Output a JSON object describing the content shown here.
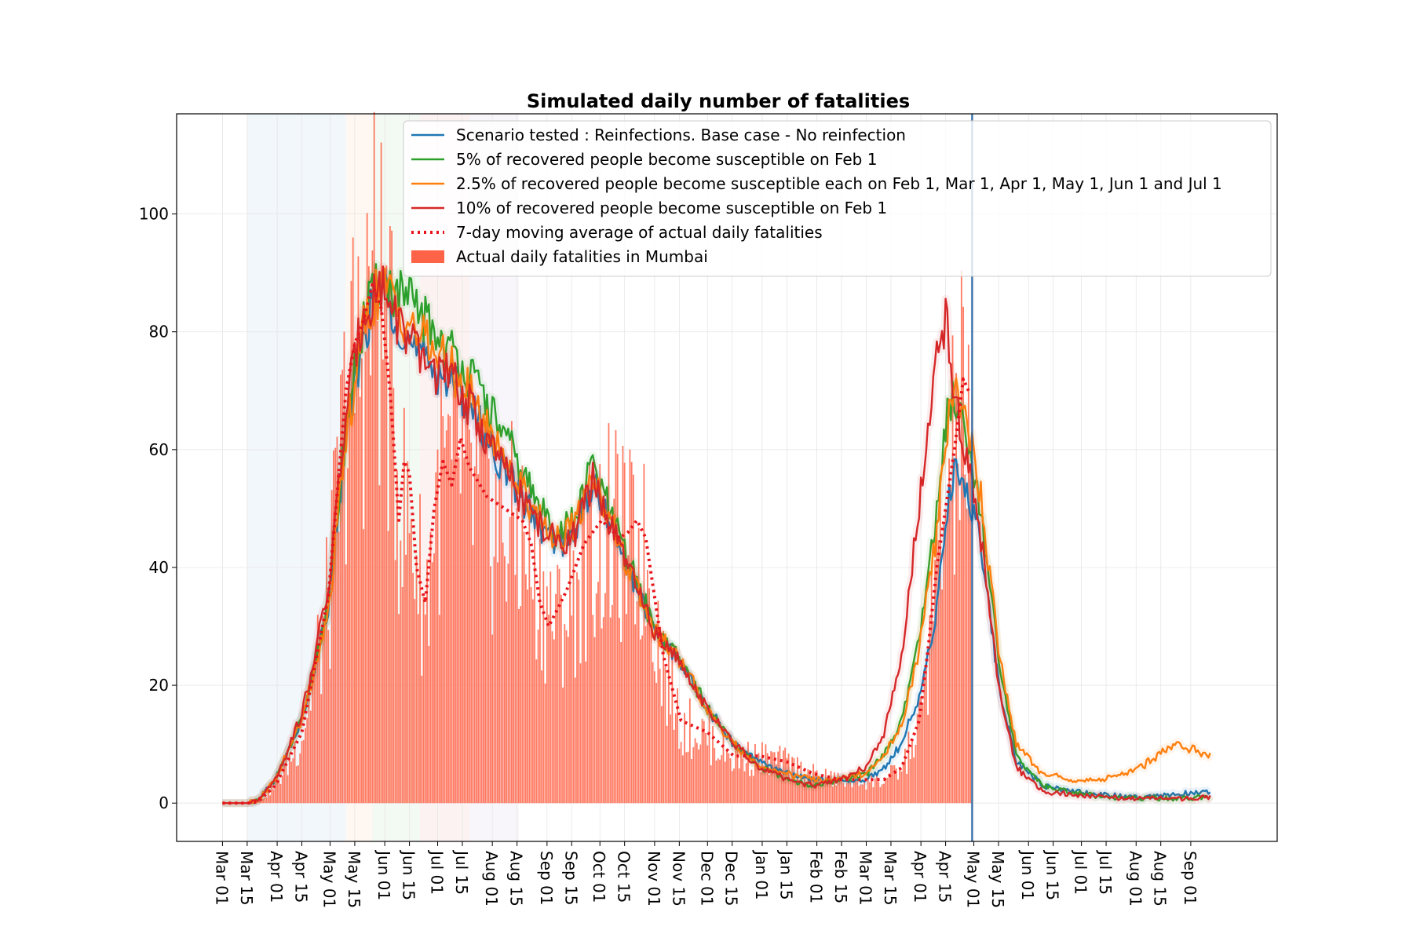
{
  "chart_data": {
    "type": "line",
    "title": "Simulated daily number of fatalities",
    "xlabel": "",
    "ylabel": "",
    "ylim": [
      -6.5,
      117
    ],
    "xlim_days": [
      -26,
      598
    ],
    "x_origin_label": "day 0 = Mar 01 (2020)",
    "yticks": [
      0,
      20,
      40,
      60,
      80,
      100
    ],
    "grid": true,
    "x_ticks": [
      {
        "label": "Mar 01",
        "day": 0
      },
      {
        "label": "Mar 15",
        "day": 14
      },
      {
        "label": "Apr 01",
        "day": 31
      },
      {
        "label": "Apr 15",
        "day": 45
      },
      {
        "label": "May 01",
        "day": 61
      },
      {
        "label": "May 15",
        "day": 75
      },
      {
        "label": "Jun 01",
        "day": 92
      },
      {
        "label": "Jun 15",
        "day": 106
      },
      {
        "label": "Jul 01",
        "day": 122
      },
      {
        "label": "Jul 15",
        "day": 136
      },
      {
        "label": "Aug 01",
        "day": 153
      },
      {
        "label": "Aug 15",
        "day": 167
      },
      {
        "label": "Sep 01",
        "day": 184
      },
      {
        "label": "Sep 15",
        "day": 198
      },
      {
        "label": "Oct 01",
        "day": 214
      },
      {
        "label": "Oct 15",
        "day": 228
      },
      {
        "label": "Nov 01",
        "day": 245
      },
      {
        "label": "Nov 15",
        "day": 259
      },
      {
        "label": "Dec 01",
        "day": 275
      },
      {
        "label": "Dec 15",
        "day": 289
      },
      {
        "label": "Jan 01",
        "day": 306
      },
      {
        "label": "Jan 15",
        "day": 320
      },
      {
        "label": "Feb 01",
        "day": 337
      },
      {
        "label": "Feb 15",
        "day": 351
      },
      {
        "label": "Mar 01",
        "day": 365
      },
      {
        "label": "Mar 15",
        "day": 379
      },
      {
        "label": "Apr 01",
        "day": 396
      },
      {
        "label": "Apr 15",
        "day": 410
      },
      {
        "label": "May 01",
        "day": 426
      },
      {
        "label": "May 15",
        "day": 440
      },
      {
        "label": "Jun 01",
        "day": 457
      },
      {
        "label": "Jun 15",
        "day": 471
      },
      {
        "label": "Jul 01",
        "day": 487
      },
      {
        "label": "Jul 15",
        "day": 501
      },
      {
        "label": "Aug 01",
        "day": 518
      },
      {
        "label": "Aug 15",
        "day": 532
      },
      {
        "label": "Sep 01",
        "day": 549
      }
    ],
    "vertical_marker_day": 425,
    "shaded_periods": [
      {
        "start": 14,
        "end": 70,
        "color": "#1f77b4"
      },
      {
        "start": 70,
        "end": 85,
        "color": "#ff7f0e"
      },
      {
        "start": 85,
        "end": 112,
        "color": "#2ca02c"
      },
      {
        "start": 112,
        "end": 140,
        "color": "#d62728"
      },
      {
        "start": 140,
        "end": 168,
        "color": "#9467bd"
      }
    ],
    "series": [
      {
        "name": "Scenario tested : Reinfections. Base case - No reinfection",
        "color": "#1f77b4",
        "style": "solid",
        "x": [
          0,
          14,
          20,
          30,
          45,
          60,
          70,
          80,
          90,
          100,
          110,
          120,
          135,
          150,
          165,
          180,
          190,
          200,
          210,
          220,
          230,
          245,
          260,
          275,
          290,
          305,
          320,
          335,
          350,
          365,
          375,
          385,
          395,
          405,
          410,
          415,
          420,
          425,
          430,
          440,
          450,
          465,
          480,
          500,
          520,
          540,
          560
        ],
        "values": [
          0,
          0,
          0.5,
          4,
          14,
          33,
          62,
          80,
          88,
          82,
          76,
          74,
          70,
          62,
          54,
          47,
          44,
          46,
          55,
          47,
          40,
          29,
          24,
          16,
          10,
          7,
          5,
          4,
          4,
          4,
          6,
          10,
          18,
          33,
          48,
          56,
          55,
          50,
          45,
          20,
          7,
          3,
          2,
          1.5,
          1,
          1.5,
          2
        ]
      },
      {
        "name": "5% of recovered people become susceptible on Feb 1",
        "color": "#2ca02c",
        "style": "solid",
        "x": [
          0,
          14,
          20,
          30,
          45,
          60,
          70,
          80,
          90,
          100,
          110,
          120,
          135,
          150,
          165,
          180,
          190,
          200,
          210,
          220,
          230,
          245,
          260,
          275,
          290,
          305,
          320,
          335,
          350,
          365,
          375,
          385,
          395,
          405,
          410,
          415,
          420,
          425,
          430,
          440,
          450,
          465,
          480,
          500,
          520,
          540,
          560
        ],
        "values": [
          0,
          0,
          0.5,
          4,
          14,
          34,
          64,
          82,
          89,
          86,
          84,
          80,
          75,
          68,
          59,
          50,
          46,
          48,
          58,
          49,
          41,
          30,
          24,
          16,
          10,
          6,
          4,
          3,
          4,
          5,
          8,
          14,
          28,
          50,
          64,
          70,
          66,
          58,
          50,
          24,
          8,
          3,
          2,
          1,
          0.8,
          0.8,
          1
        ]
      },
      {
        "name": "2.5% of recovered people become susceptible each on Feb 1, Mar 1, Apr 1, May 1, Jun 1 and Jul 1",
        "color": "#ff7f0e",
        "style": "solid",
        "x": [
          0,
          14,
          20,
          30,
          45,
          60,
          70,
          80,
          90,
          100,
          110,
          120,
          135,
          150,
          165,
          180,
          190,
          200,
          210,
          220,
          230,
          245,
          260,
          275,
          290,
          305,
          320,
          335,
          350,
          365,
          375,
          385,
          395,
          405,
          410,
          415,
          420,
          425,
          430,
          440,
          450,
          465,
          480,
          500,
          520,
          530,
          540,
          550,
          560
        ],
        "values": [
          0,
          0,
          0.5,
          4,
          14,
          32,
          62,
          81,
          88,
          84,
          80,
          77,
          72,
          64,
          56,
          48,
          45,
          47,
          56,
          48,
          40,
          29,
          24,
          16,
          10,
          6,
          5,
          4,
          4,
          5,
          8,
          13,
          26,
          46,
          62,
          70,
          68,
          60,
          52,
          26,
          10,
          5,
          4,
          4,
          6,
          8,
          10,
          9,
          8
        ]
      },
      {
        "name": "10% of recovered people become susceptible on Feb 1",
        "color": "#d62728",
        "style": "solid",
        "x": [
          0,
          14,
          20,
          30,
          45,
          60,
          70,
          80,
          90,
          100,
          110,
          120,
          135,
          150,
          165,
          180,
          190,
          200,
          210,
          220,
          230,
          245,
          260,
          275,
          290,
          305,
          320,
          335,
          350,
          365,
          375,
          385,
          395,
          405,
          410,
          415,
          420,
          425,
          430,
          440,
          450,
          465,
          480,
          500,
          520,
          540,
          560
        ],
        "values": [
          0,
          0,
          0.5,
          4,
          15,
          36,
          66,
          84,
          88,
          82,
          76,
          74,
          70,
          62,
          54,
          47,
          44,
          46,
          55,
          47,
          40,
          29,
          24,
          16,
          10,
          6,
          4,
          3,
          4,
          6,
          12,
          25,
          50,
          76,
          82,
          70,
          62,
          54,
          45,
          20,
          6,
          2,
          1.5,
          1,
          0.8,
          0.8,
          1
        ]
      },
      {
        "name": "7-day moving average of actual daily fatalities",
        "color": "#e8141c",
        "style": "dotted",
        "x": [
          0,
          14,
          20,
          30,
          45,
          60,
          70,
          75,
          80,
          85,
          90,
          95,
          100,
          103,
          106,
          110,
          115,
          120,
          125,
          130,
          135,
          140,
          150,
          160,
          170,
          175,
          180,
          185,
          195,
          205,
          215,
          225,
          230,
          235,
          240,
          250,
          260,
          275,
          290,
          305,
          320,
          335,
          350,
          365,
          375,
          385,
          395,
          400,
          405,
          410,
          415,
          420,
          423
        ],
        "values": [
          0,
          0,
          0.2,
          3,
          12,
          35,
          70,
          78,
          82,
          88,
          84,
          70,
          48,
          58,
          56,
          40,
          34,
          50,
          58,
          54,
          62,
          57,
          52,
          50,
          48,
          44,
          34,
          30,
          36,
          44,
          48,
          45,
          46,
          48,
          45,
          25,
          14,
          12,
          8,
          8,
          7,
          5,
          4,
          4,
          4,
          6,
          14,
          26,
          40,
          50,
          60,
          72,
          70
        ]
      }
    ],
    "bars": {
      "name": "Actual daily fatalities in Mumbai",
      "color": "#ff6347",
      "x": [
        0,
        14,
        20,
        30,
        45,
        60,
        70,
        80,
        85,
        90,
        95,
        100,
        105,
        110,
        115,
        120,
        125,
        130,
        135,
        140,
        150,
        160,
        170,
        180,
        190,
        200,
        210,
        220,
        230,
        240,
        250,
        260,
        275,
        290,
        305,
        320,
        335,
        350,
        365,
        375,
        385,
        395,
        400,
        405,
        410,
        415,
        420,
        425
      ],
      "values": [
        0,
        0,
        0.2,
        3,
        12,
        35,
        70,
        82,
        92,
        88,
        76,
        56,
        50,
        45,
        34,
        52,
        58,
        56,
        62,
        55,
        51,
        49,
        47,
        38,
        32,
        38,
        46,
        48,
        45,
        44,
        25,
        14,
        12,
        8,
        8,
        7,
        5,
        4,
        4,
        4,
        6,
        14,
        26,
        40,
        52,
        62,
        70,
        58
      ]
    },
    "legend": {
      "location": "top-right"
    }
  }
}
